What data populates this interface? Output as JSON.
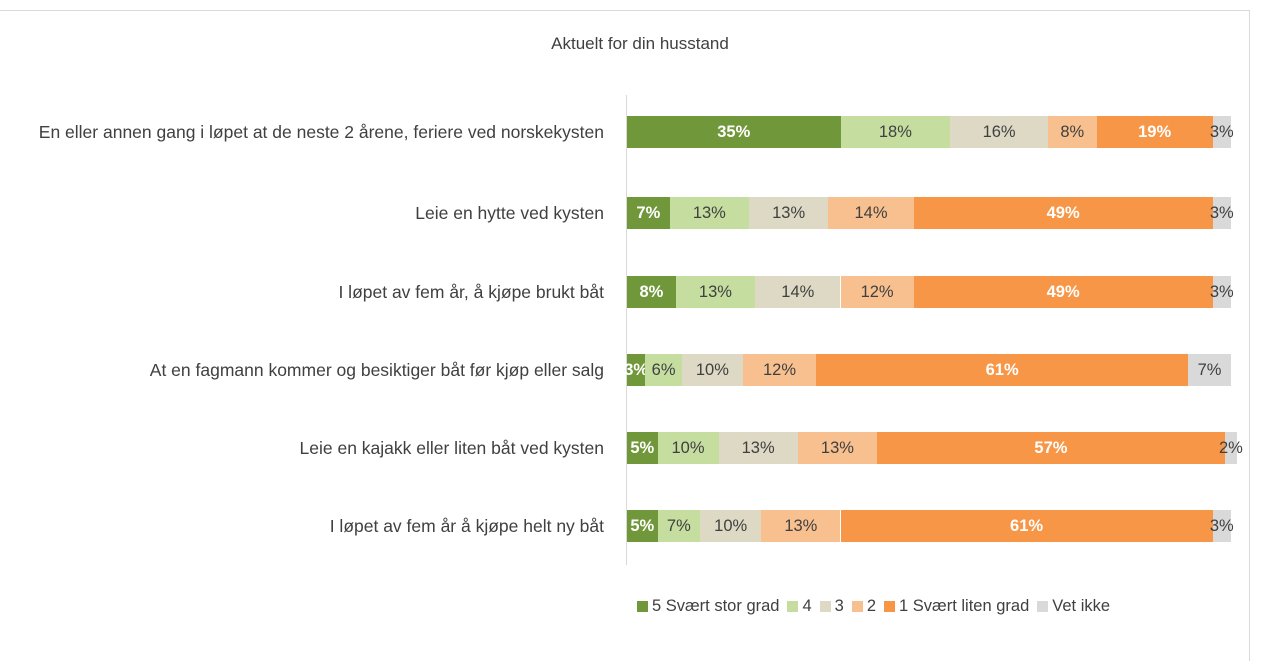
{
  "chart_data": {
    "type": "bar",
    "orientation": "horizontal",
    "stacked": true,
    "title": "Aktuelt for din husstand",
    "legend": "bottom",
    "categories": [
      "En eller annen gang i løpet at de neste 2 årene, feriere ved norskekysten",
      "Leie en hytte ved kysten",
      "I løpet av fem år, å kjøpe brukt båt",
      "At en fagmann kommer og besiktiger båt før kjøp eller salg",
      "Leie en kajakk eller liten båt ved kysten",
      "I løpet av fem år å kjøpe helt ny båt"
    ],
    "series": [
      {
        "name": "5 Svært stor grad",
        "color": "#70973a",
        "values": [
          35,
          7,
          8,
          3,
          5,
          5
        ],
        "value_labels": [
          "35%",
          "7%",
          "8%",
          "3%",
          "5%",
          "5%"
        ]
      },
      {
        "name": "4",
        "color": "#c5dea0",
        "values": [
          18,
          13,
          13,
          6,
          10,
          7
        ],
        "value_labels": [
          "18%",
          "13%",
          "13%",
          "6%",
          "10%",
          "7%"
        ]
      },
      {
        "name": "3",
        "color": "#ddd9c4",
        "values": [
          16,
          13,
          14,
          10,
          13,
          10
        ],
        "value_labels": [
          "16%",
          "13%",
          "14%",
          "10%",
          "13%",
          "10%"
        ]
      },
      {
        "name": "2",
        "color": "#f8c08e",
        "values": [
          8,
          14,
          12,
          12,
          13,
          13
        ],
        "value_labels": [
          "8%",
          "14%",
          "12%",
          "12%",
          "13%",
          "13%"
        ]
      },
      {
        "name": "1 Svært liten grad",
        "color": "#f79646",
        "values": [
          19,
          49,
          49,
          61,
          57,
          61
        ],
        "value_labels": [
          "19%",
          "49%",
          "49%",
          "61%",
          "57%",
          "61%"
        ]
      },
      {
        "name": "Vet ikke",
        "color": "#d9d9d9",
        "values": [
          3,
          3,
          3,
          7,
          2,
          3
        ],
        "value_labels": [
          "3%",
          "3%",
          "3%",
          "7%",
          "2%",
          "3%"
        ]
      }
    ]
  }
}
